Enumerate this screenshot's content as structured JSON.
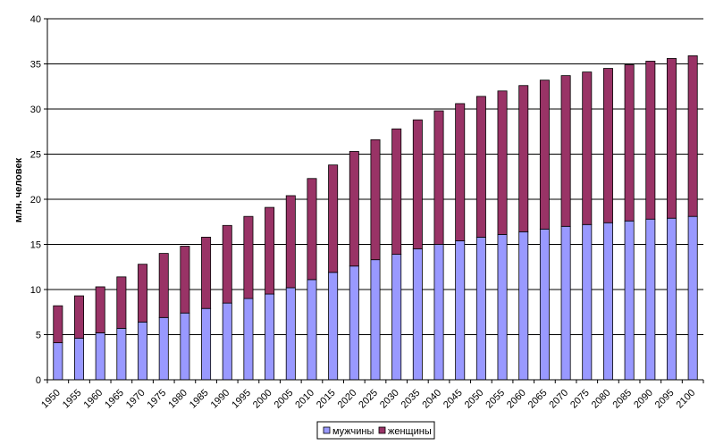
{
  "chart_data": {
    "type": "bar",
    "stacked": true,
    "categories": [
      "1950",
      "1955",
      "1960",
      "1965",
      "1970",
      "1975",
      "1980",
      "1985",
      "1990",
      "1995",
      "2000",
      "2005",
      "2010",
      "2015",
      "2020",
      "2025",
      "2030",
      "2035",
      "2040",
      "2045",
      "2050",
      "2055",
      "2060",
      "2065",
      "2070",
      "2075",
      "2080",
      "2085",
      "2090",
      "2095",
      "2100"
    ],
    "series": [
      {
        "name": "мужчины",
        "color": "#9999ff",
        "values": [
          4.1,
          4.6,
          5.2,
          5.7,
          6.4,
          6.9,
          7.4,
          7.9,
          8.5,
          9.0,
          9.5,
          10.2,
          11.1,
          11.9,
          12.6,
          13.3,
          13.9,
          14.5,
          15.0,
          15.4,
          15.8,
          16.1,
          16.4,
          16.7,
          17.0,
          17.2,
          17.4,
          17.6,
          17.8,
          17.9,
          18.1
        ]
      },
      {
        "name": "женщины",
        "color": "#993366",
        "values": [
          4.1,
          4.7,
          5.1,
          5.7,
          6.4,
          7.1,
          7.4,
          7.9,
          8.6,
          9.1,
          9.6,
          10.2,
          11.2,
          11.9,
          12.7,
          13.3,
          13.9,
          14.3,
          14.8,
          15.2,
          15.6,
          15.9,
          16.2,
          16.5,
          16.7,
          16.9,
          17.1,
          17.3,
          17.5,
          17.7,
          17.8
        ]
      }
    ],
    "ylabel": "млн. человек",
    "xlabel": "",
    "ylim": [
      0,
      40
    ],
    "yticks": [
      0,
      5,
      10,
      15,
      20,
      25,
      30,
      35,
      40
    ],
    "grid": true,
    "legend_position": "bottom"
  }
}
